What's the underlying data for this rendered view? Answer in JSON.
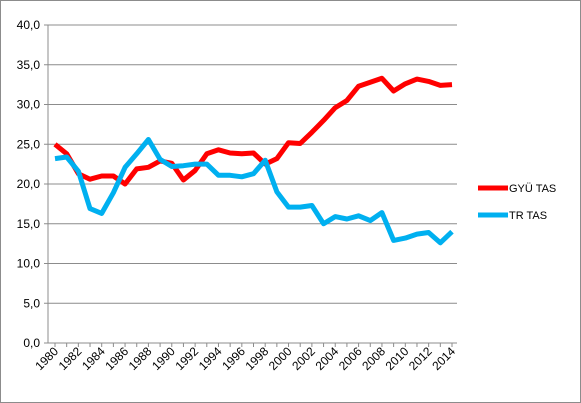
{
  "chart_data": {
    "type": "line",
    "title": "",
    "xlabel": "",
    "ylabel": "",
    "ylim": [
      0,
      40
    ],
    "yticks": [
      "0,0",
      "5,0",
      "10,0",
      "15,0",
      "20,0",
      "25,0",
      "30,0",
      "35,0",
      "40,0"
    ],
    "xticks": [
      "1980",
      "1982",
      "1984",
      "1986",
      "1988",
      "1990",
      "1992",
      "1994",
      "1996",
      "1998",
      "2000",
      "2002",
      "2004",
      "2006",
      "2008",
      "2010",
      "2012",
      "2014"
    ],
    "grid": "horizontal",
    "legend_position": "right",
    "x": [
      1980,
      1981,
      1982,
      1983,
      1984,
      1985,
      1986,
      1987,
      1988,
      1989,
      1990,
      1991,
      1992,
      1993,
      1994,
      1995,
      1996,
      1997,
      1998,
      1999,
      2000,
      2001,
      2002,
      2003,
      2004,
      2005,
      2006,
      2007,
      2008,
      2009,
      2010,
      2011,
      2012,
      2013,
      2014
    ],
    "series": [
      {
        "name": "GYÜ TAS",
        "color": "#ff0000",
        "values": [
          25.0,
          23.8,
          21.3,
          20.6,
          21.0,
          21.0,
          20.0,
          21.9,
          22.1,
          22.9,
          22.6,
          20.5,
          21.7,
          23.8,
          24.3,
          23.9,
          23.8,
          23.9,
          22.5,
          23.2,
          25.2,
          25.1,
          26.5,
          28.0,
          29.6,
          30.5,
          32.3,
          32.8,
          33.3,
          31.7,
          32.6,
          33.2,
          32.9,
          32.4,
          32.5
        ]
      },
      {
        "name": "TR TAS",
        "color": "#00b0f0",
        "values": [
          23.2,
          23.4,
          21.6,
          16.9,
          16.3,
          18.9,
          22.1,
          23.8,
          25.6,
          23.1,
          22.2,
          22.3,
          22.5,
          22.5,
          21.1,
          21.1,
          20.9,
          21.3,
          23.0,
          19.0,
          17.1,
          17.1,
          17.3,
          15.0,
          15.9,
          15.6,
          16.0,
          15.4,
          16.4,
          12.9,
          13.2,
          13.7,
          13.9,
          12.6,
          14.0
        ]
      }
    ]
  }
}
